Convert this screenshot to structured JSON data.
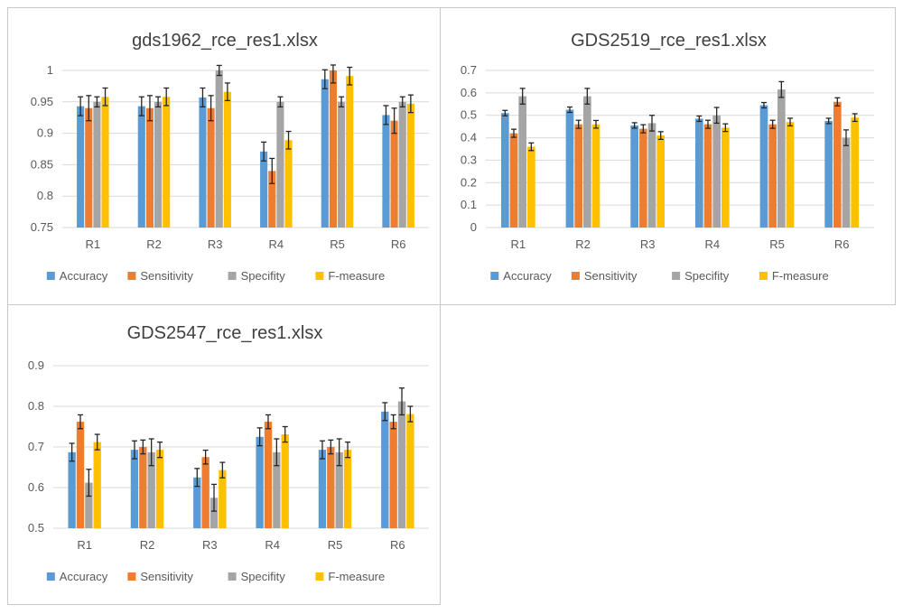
{
  "colors": {
    "Accuracy": "#5b9bd5",
    "Sensitivity": "#ed7d31",
    "Specifity": "#a5a5a5",
    "F-measure": "#ffc000",
    "grid": "#d9d9d9",
    "text": "#595959",
    "title": "#404040",
    "errorbar": "#262626"
  },
  "chart_data": [
    {
      "type": "bar",
      "title": "gds1962_rce_res1.xlsx",
      "categories": [
        "R1",
        "R2",
        "R3",
        "R4",
        "R5",
        "R6"
      ],
      "ylim": [
        0.75,
        1
      ],
      "yticks": [
        0.75,
        0.8,
        0.85,
        0.9,
        0.95,
        1
      ],
      "ytick_labels": [
        "0.75",
        "0.8",
        "0.85",
        "0.9",
        "0.95",
        "1"
      ],
      "grid": true,
      "legend": "bottom",
      "series": [
        {
          "name": "Accuracy",
          "values": [
            0.943,
            0.943,
            0.957,
            0.871,
            0.986,
            0.929
          ],
          "errors": [
            0.015,
            0.015,
            0.015,
            0.015,
            0.015,
            0.015
          ]
        },
        {
          "name": "Sensitivity",
          "values": [
            0.94,
            0.94,
            0.94,
            0.84,
            1.0,
            0.92
          ],
          "errors": [
            0.02,
            0.02,
            0.02,
            0.02,
            0.02,
            0.02
          ]
        },
        {
          "name": "Specifity",
          "values": [
            0.95,
            0.95,
            1.0,
            0.95,
            0.95,
            0.95
          ],
          "errors": [
            0.008,
            0.008,
            0.008,
            0.008,
            0.008,
            0.008
          ]
        },
        {
          "name": "F-measure",
          "values": [
            0.958,
            0.958,
            0.966,
            0.889,
            0.991,
            0.947
          ],
          "errors": [
            0.014,
            0.014,
            0.014,
            0.014,
            0.014,
            0.014
          ]
        }
      ]
    },
    {
      "type": "bar",
      "title": "GDS2519_rce_res1.xlsx",
      "categories": [
        "R1",
        "R2",
        "R3",
        "R4",
        "R5",
        "R6"
      ],
      "ylim": [
        0,
        0.7
      ],
      "yticks": [
        0,
        0.1,
        0.2,
        0.3,
        0.4,
        0.5,
        0.6,
        0.7
      ],
      "ytick_labels": [
        "0",
        "0.1",
        "0.2",
        "0.3",
        "0.4",
        "0.5",
        "0.6",
        "0.7"
      ],
      "grid": true,
      "legend": "bottom",
      "series": [
        {
          "name": "Accuracy",
          "values": [
            0.51,
            0.525,
            0.455,
            0.485,
            0.545,
            0.475
          ],
          "errors": [
            0.012,
            0.012,
            0.012,
            0.012,
            0.012,
            0.012
          ]
        },
        {
          "name": "Sensitivity",
          "values": [
            0.42,
            0.46,
            0.44,
            0.46,
            0.46,
            0.56
          ],
          "errors": [
            0.018,
            0.018,
            0.018,
            0.018,
            0.018,
            0.018
          ]
        },
        {
          "name": "Specifity",
          "values": [
            0.585,
            0.585,
            0.465,
            0.5,
            0.615,
            0.4
          ],
          "errors": [
            0.035,
            0.035,
            0.035,
            0.035,
            0.035,
            0.035
          ]
        },
        {
          "name": "F-measure",
          "values": [
            0.36,
            0.46,
            0.41,
            0.445,
            0.47,
            0.49
          ],
          "errors": [
            0.017,
            0.017,
            0.017,
            0.017,
            0.017,
            0.017
          ]
        }
      ]
    },
    {
      "type": "bar",
      "title": "GDS2547_rce_res1.xlsx",
      "categories": [
        "R1",
        "R2",
        "R3",
        "R4",
        "R5",
        "R6"
      ],
      "ylim": [
        0.5,
        0.9
      ],
      "yticks": [
        0.5,
        0.6,
        0.7,
        0.8,
        0.9
      ],
      "ytick_labels": [
        "0.5",
        "0.6",
        "0.7",
        "0.8",
        "0.9"
      ],
      "grid": true,
      "legend": "bottom",
      "series": [
        {
          "name": "Accuracy",
          "values": [
            0.687,
            0.693,
            0.625,
            0.725,
            0.693,
            0.787
          ],
          "errors": [
            0.022,
            0.022,
            0.022,
            0.022,
            0.022,
            0.022
          ]
        },
        {
          "name": "Sensitivity",
          "values": [
            0.762,
            0.7,
            0.675,
            0.762,
            0.7,
            0.762
          ],
          "errors": [
            0.017,
            0.017,
            0.017,
            0.017,
            0.017,
            0.017
          ]
        },
        {
          "name": "Specifity",
          "values": [
            0.612,
            0.687,
            0.575,
            0.687,
            0.687,
            0.812
          ],
          "errors": [
            0.033,
            0.033,
            0.033,
            0.033,
            0.033,
            0.033
          ]
        },
        {
          "name": "F-measure",
          "values": [
            0.712,
            0.693,
            0.643,
            0.731,
            0.693,
            0.781
          ],
          "errors": [
            0.019,
            0.019,
            0.019,
            0.019,
            0.019,
            0.019
          ]
        }
      ]
    }
  ]
}
